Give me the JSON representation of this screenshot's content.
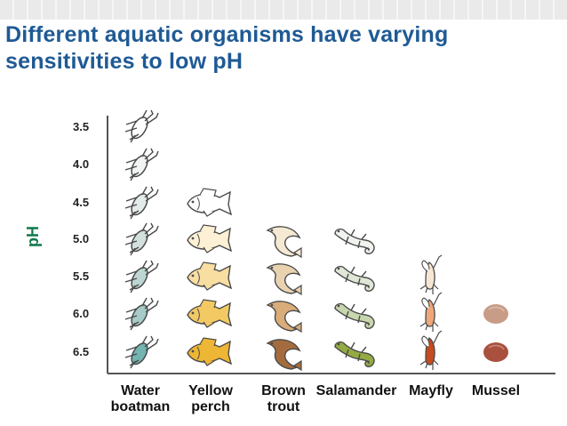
{
  "title": {
    "line1": "Different aquatic organisms have varying",
    "line2": "sensitivities to low pH"
  },
  "axis": {
    "label": "pH",
    "ticks": [
      "3.5",
      "4.0",
      "4.5",
      "5.0",
      "5.5",
      "6.0",
      "6.5"
    ]
  },
  "organisms": [
    {
      "line1": "Water",
      "line2": "boatman",
      "icon": "water-boatman-icon",
      "min_ph": 3.5,
      "colors": [
        "#ffffff",
        "#f1f4f3",
        "#e2ebe9",
        "#d2e1de",
        "#bdd6d3",
        "#a7cbc8",
        "#74b4b1"
      ]
    },
    {
      "line1": "Yellow",
      "line2": "perch",
      "icon": "fish-icon",
      "min_ph": 4.5,
      "colors": [
        "#ffffff",
        "#fdf0d4",
        "#f9dea2",
        "#f3c964",
        "#edb634"
      ]
    },
    {
      "line1": "Brown",
      "line2": "trout",
      "icon": "trout-icon",
      "min_ph": 5.0,
      "colors": [
        "#f6e9d4",
        "#e9d2b0",
        "#d9ad7a",
        "#a46c3e"
      ]
    },
    {
      "line1": "Salamander",
      "line2": "",
      "icon": "salamander-icon",
      "min_ph": 5.0,
      "colors": [
        "#f1f3ee",
        "#e0e7d6",
        "#c8d6ae",
        "#94aa43"
      ]
    },
    {
      "line1": "Mayfly",
      "line2": "",
      "icon": "mayfly-icon",
      "min_ph": 5.5,
      "colors": [
        "#f8e6d4",
        "#eea77a",
        "#c74b1e"
      ]
    },
    {
      "line1": "Mussel",
      "line2": "",
      "icon": "mussel-icon",
      "min_ph": 6.0,
      "colors": [
        "#c89c86",
        "#a9503e"
      ]
    }
  ]
}
